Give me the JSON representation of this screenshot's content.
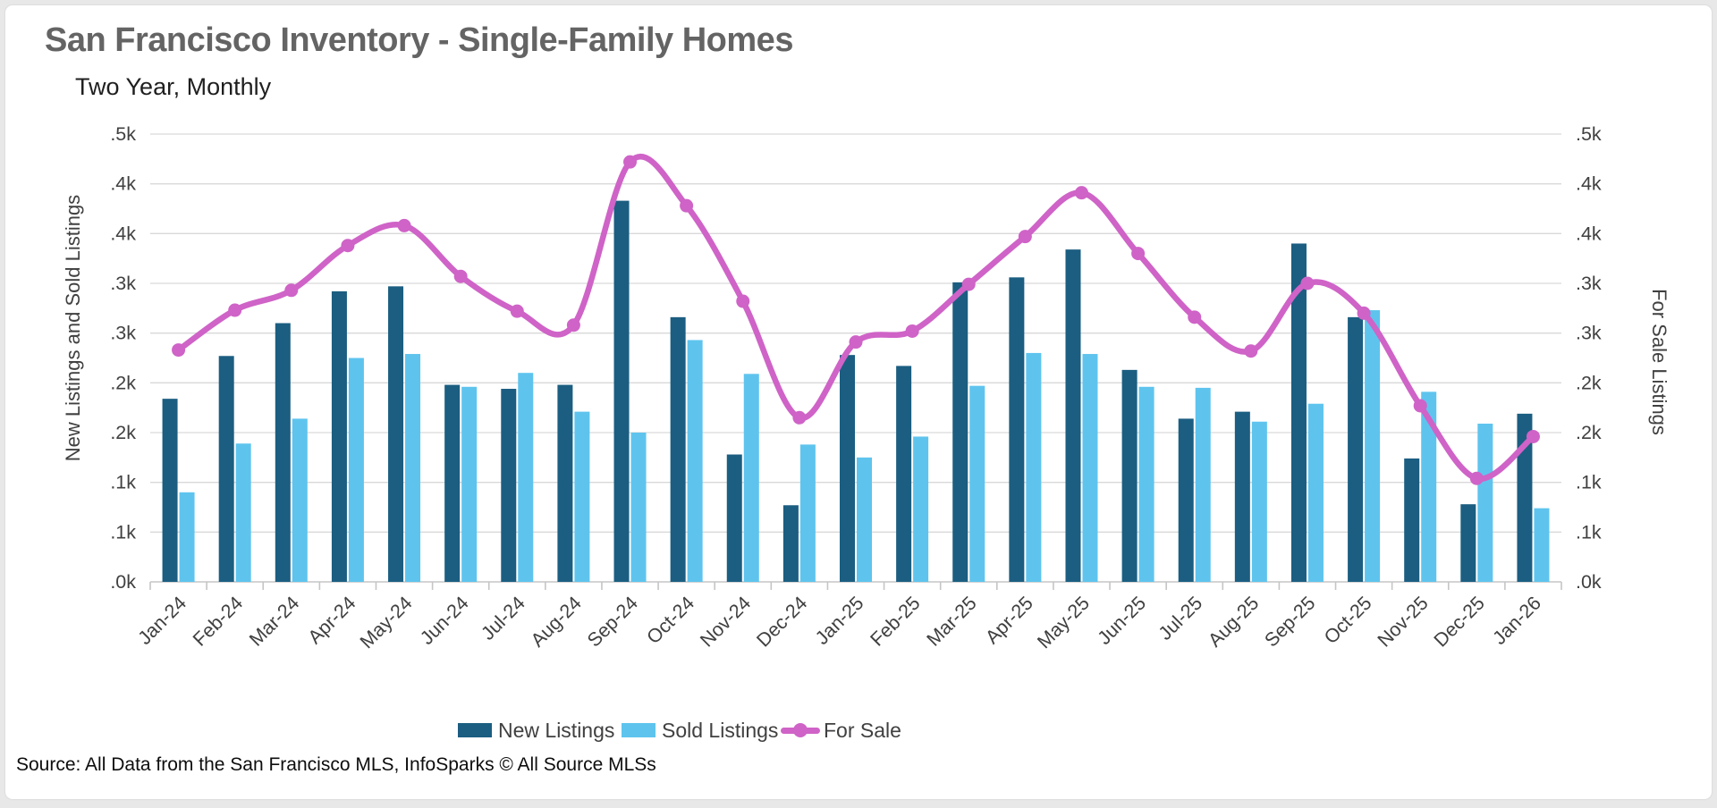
{
  "header": {
    "title": "San Francisco Inventory - Single-Family Homes",
    "subtitle": "Two Year, Monthly"
  },
  "axes": {
    "left_title": "New Listings and Sold Listings",
    "right_title": "For Sale Listings"
  },
  "legend": {
    "new_listings": "New Listings",
    "sold_listings": "Sold Listings",
    "for_sale": "For Sale"
  },
  "footer": {
    "source": "Source: All Data from the San Francisco MLS, InfoSparks © All Source MLSs"
  },
  "colors": {
    "new_bar": "#1b5e81",
    "sold_bar": "#5ec4ee",
    "for_sale_line": "#cf63c7",
    "grid": "#d9d9d9",
    "axis": "#c5c5c5",
    "tick_text": "#404040"
  },
  "chart_data": {
    "type": "bar",
    "subtype": "grouped-bars-plus-line",
    "title": "San Francisco Inventory - Single-Family Homes",
    "xlabel": "",
    "ylabel": "New Listings and Sold Listings",
    "ylabel_right": "For Sale Listings",
    "ylim": [
      0,
      450
    ],
    "grid": true,
    "legend_position": "bottom",
    "categories": [
      "Jan-24",
      "Feb-24",
      "Mar-24",
      "Apr-24",
      "May-24",
      "Jun-24",
      "Jul-24",
      "Aug-24",
      "Sep-24",
      "Oct-24",
      "Nov-24",
      "Dec-24",
      "Jan-25",
      "Feb-25",
      "Mar-25",
      "Apr-25",
      "May-25",
      "Jun-25",
      "Jul-25",
      "Aug-25",
      "Sep-25",
      "Oct-25",
      "Nov-25",
      "Dec-25",
      "Jan-26"
    ],
    "series": [
      {
        "name": "New Listings",
        "type": "bar",
        "color": "#1b5e81",
        "values": [
          184,
          227,
          260,
          292,
          297,
          198,
          194,
          198,
          383,
          266,
          128,
          77,
          228,
          217,
          301,
          306,
          334,
          213,
          164,
          171,
          340,
          266,
          124,
          78,
          169
        ]
      },
      {
        "name": "Sold Listings",
        "type": "bar",
        "color": "#5ec4ee",
        "values": [
          90,
          139,
          164,
          225,
          229,
          196,
          210,
          171,
          150,
          243,
          209,
          138,
          125,
          146,
          197,
          230,
          229,
          196,
          195,
          161,
          179,
          273,
          191,
          159,
          74
        ]
      },
      {
        "name": "For Sale",
        "type": "line",
        "color": "#cf63c7",
        "values": [
          233,
          273,
          293,
          338,
          358,
          307,
          272,
          258,
          422,
          378,
          282,
          165,
          241,
          252,
          299,
          347,
          391,
          330,
          266,
          232,
          300,
          270,
          177,
          104,
          146
        ]
      }
    ],
    "yticks": [
      {
        "value": 0,
        "label": ".0k"
      },
      {
        "value": 50,
        "label": ".1k"
      },
      {
        "value": 100,
        "label": ".1k"
      },
      {
        "value": 150,
        "label": ".2k"
      },
      {
        "value": 200,
        "label": ".2k"
      },
      {
        "value": 250,
        "label": ".3k"
      },
      {
        "value": 300,
        "label": ".3k"
      },
      {
        "value": 350,
        "label": ".4k"
      },
      {
        "value": 400,
        "label": ".4k"
      },
      {
        "value": 450,
        "label": ".5k"
      }
    ]
  }
}
